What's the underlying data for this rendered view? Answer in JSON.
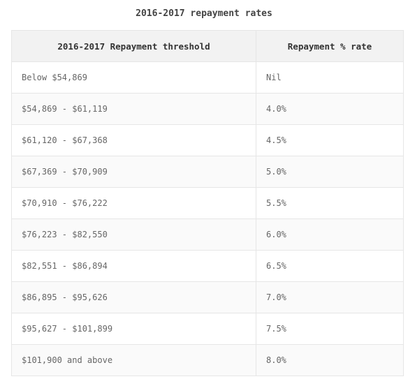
{
  "caption": "2016-2017 repayment rates",
  "table": {
    "headers": [
      "2016-2017 Repayment threshold",
      "Repayment % rate"
    ],
    "rows": [
      [
        "Below $54,869",
        "Nil"
      ],
      [
        "$54,869 - $61,119",
        "4.0%"
      ],
      [
        "$61,120 - $67,368",
        "4.5%"
      ],
      [
        "$67,369 - $70,909",
        "5.0%"
      ],
      [
        "$70,910 - $76,222",
        "5.5%"
      ],
      [
        "$76,223 - $82,550",
        "6.0%"
      ],
      [
        "$82,551 - $86,894",
        "6.5%"
      ],
      [
        "$86,895 - $95,626",
        "7.0%"
      ],
      [
        "$95,627 - $101,899",
        "7.5%"
      ],
      [
        "$101,900 and above",
        "8.0%"
      ]
    ]
  }
}
